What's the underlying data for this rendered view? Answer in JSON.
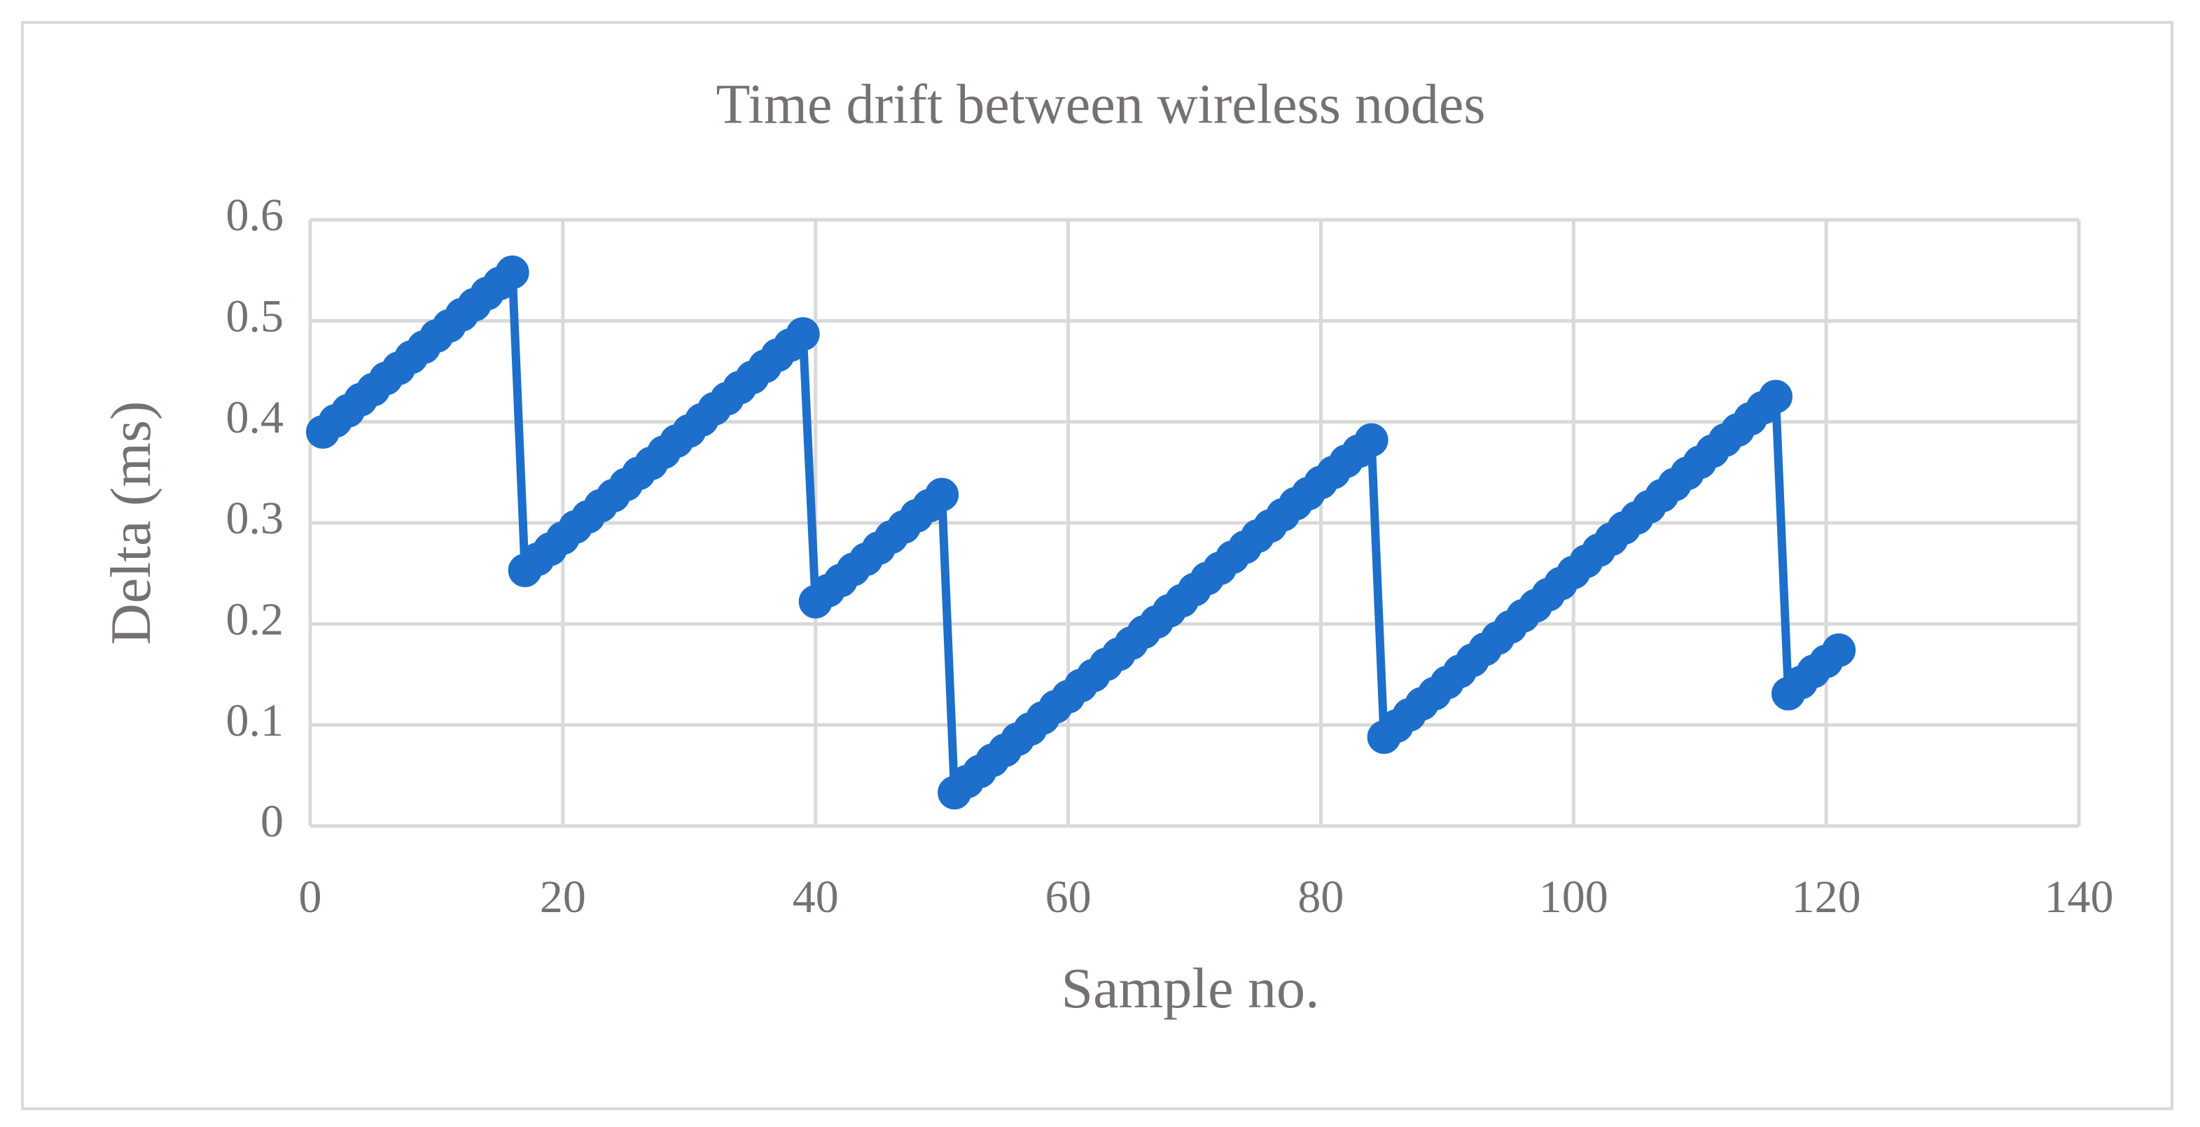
{
  "chart_data": {
    "type": "line",
    "title": "Time drift between wireless nodes",
    "x_label": "Sample no.",
    "y_label": "Delta (ms)",
    "x": [
      1,
      2,
      3,
      4,
      5,
      6,
      7,
      8,
      9,
      10,
      11,
      12,
      13,
      14,
      15,
      16,
      17,
      18,
      19,
      20,
      21,
      22,
      23,
      24,
      25,
      26,
      27,
      28,
      29,
      30,
      31,
      32,
      33,
      34,
      35,
      36,
      37,
      38,
      39,
      40,
      41,
      42,
      43,
      44,
      45,
      46,
      47,
      48,
      49,
      50,
      51,
      52,
      53,
      54,
      55,
      56,
      57,
      58,
      59,
      60,
      61,
      62,
      63,
      64,
      65,
      66,
      67,
      68,
      69,
      70,
      71,
      72,
      73,
      74,
      75,
      76,
      77,
      78,
      79,
      80,
      81,
      82,
      83,
      84,
      85,
      86,
      87,
      88,
      89,
      90,
      91,
      92,
      93,
      94,
      95,
      96,
      97,
      98,
      99,
      100,
      101,
      102,
      103,
      104,
      105,
      106,
      107,
      108,
      109,
      110,
      111,
      112,
      113,
      114,
      115,
      116,
      117,
      118,
      119,
      120,
      121
    ],
    "series": [
      {
        "name": "Delta",
        "color": "#1d6fcb",
        "values": [
          0.39,
          0.401,
          0.411,
          0.422,
          0.432,
          0.443,
          0.453,
          0.464,
          0.474,
          0.485,
          0.495,
          0.506,
          0.516,
          0.527,
          0.537,
          0.548,
          0.253,
          0.264,
          0.274,
          0.285,
          0.296,
          0.306,
          0.317,
          0.327,
          0.338,
          0.349,
          0.359,
          0.37,
          0.381,
          0.391,
          0.402,
          0.413,
          0.423,
          0.434,
          0.444,
          0.455,
          0.466,
          0.476,
          0.487,
          0.222,
          0.233,
          0.243,
          0.254,
          0.264,
          0.275,
          0.286,
          0.296,
          0.307,
          0.317,
          0.328,
          0.033,
          0.044,
          0.054,
          0.065,
          0.075,
          0.086,
          0.096,
          0.107,
          0.118,
          0.128,
          0.139,
          0.149,
          0.16,
          0.17,
          0.181,
          0.192,
          0.202,
          0.213,
          0.223,
          0.234,
          0.245,
          0.255,
          0.266,
          0.276,
          0.287,
          0.297,
          0.308,
          0.319,
          0.329,
          0.34,
          0.35,
          0.361,
          0.371,
          0.382,
          0.088,
          0.099,
          0.11,
          0.121,
          0.131,
          0.142,
          0.153,
          0.164,
          0.175,
          0.186,
          0.197,
          0.208,
          0.218,
          0.229,
          0.24,
          0.251,
          0.262,
          0.273,
          0.284,
          0.295,
          0.305,
          0.316,
          0.327,
          0.338,
          0.349,
          0.36,
          0.371,
          0.382,
          0.392,
          0.403,
          0.414,
          0.425,
          0.131,
          0.142,
          0.153,
          0.163,
          0.174
        ]
      }
    ],
    "xlim": [
      0,
      140
    ],
    "xticks": [
      0,
      20,
      40,
      60,
      80,
      100,
      120,
      140
    ],
    "ylim": [
      0,
      0.6
    ],
    "yticks": [
      0,
      0.1,
      0.2,
      0.3,
      0.4,
      0.5,
      0.6
    ],
    "grid": true,
    "markers": true
  }
}
